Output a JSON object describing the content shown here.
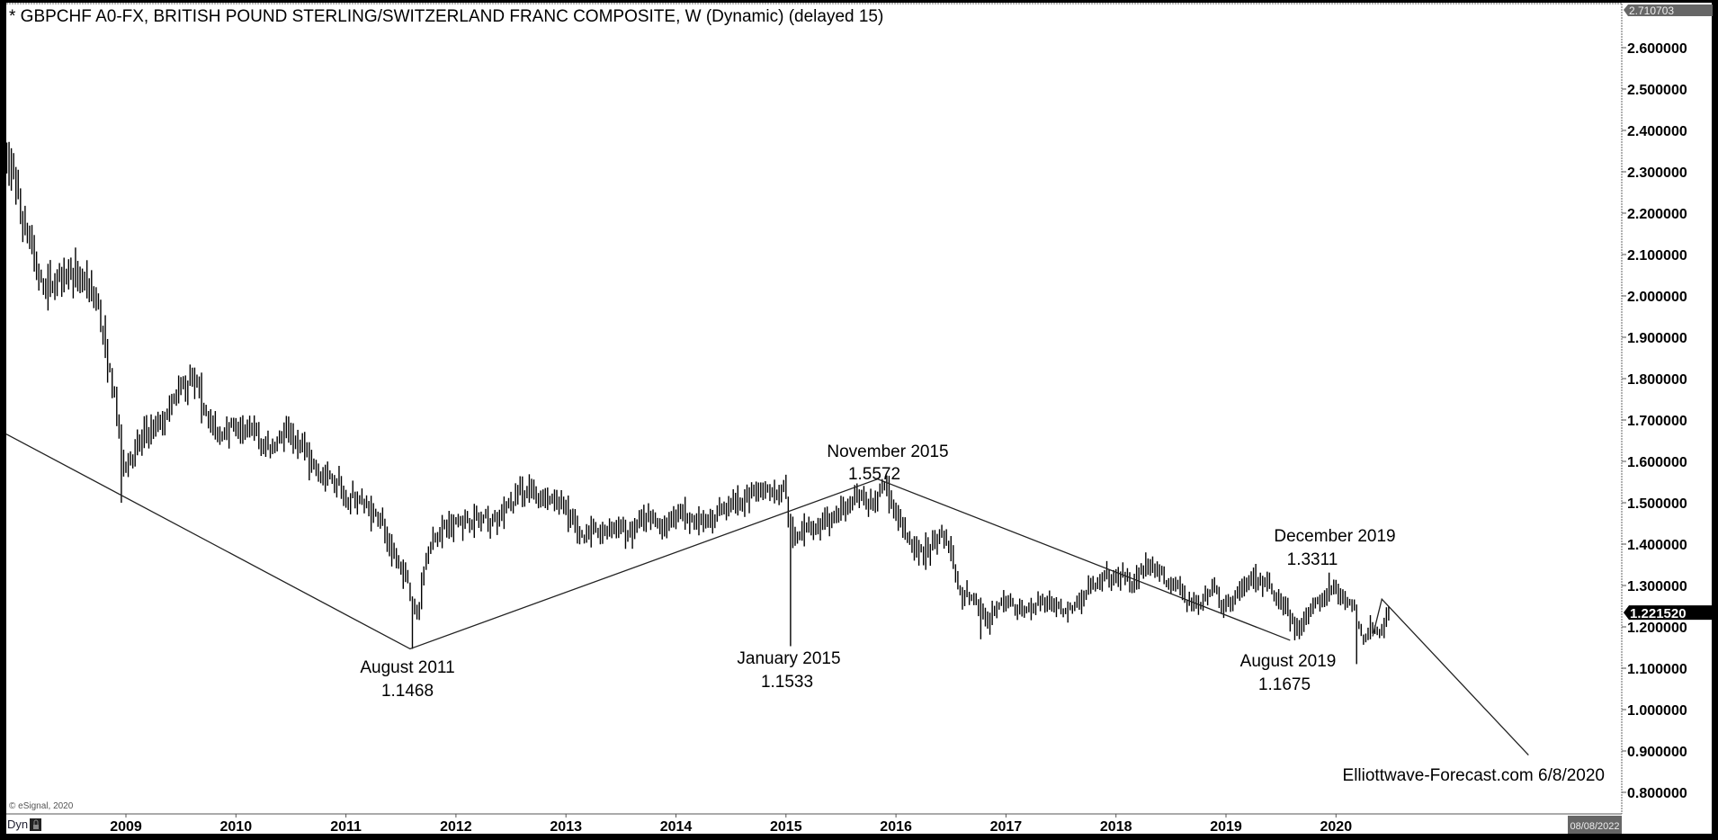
{
  "header": {
    "title": "* GBPCHF A0-FX, BRITISH POUND STERLING/SWITZERLAND FRANC COMPOSITE, W (Dynamic) (delayed 15)"
  },
  "footer": {
    "copyright": "© eSignal, 2020",
    "dyn_label": "Dyn",
    "lock_icon": "lock-icon",
    "end_date_badge": "08/08/2022"
  },
  "watermark": "Elliottwave-Forecast.com 6/8/2020",
  "price_axis": {
    "top_badge": "2.710703",
    "last_price": "1.221520",
    "last_price_value": 1.22152
  },
  "colors": {
    "bars": "#000000",
    "background": "#ffffff",
    "frame": "#000000",
    "badge_gray": "#666666"
  },
  "chart_data": {
    "type": "ohlc",
    "title": "* GBPCHF A0-FX, BRITISH POUND STERLING/SWITZERLAND FRANC COMPOSITE, W (Dynamic) (delayed 15)",
    "interval": "weekly",
    "ylim": [
      0.78,
      2.72
    ],
    "yticks": [
      "2.600000",
      "2.500000",
      "2.400000",
      "2.300000",
      "2.200000",
      "2.100000",
      "2.000000",
      "1.900000",
      "1.800000",
      "1.700000",
      "1.600000",
      "1.500000",
      "1.400000",
      "1.300000",
      "1.200000",
      "1.100000",
      "1.000000",
      "0.900000",
      "0.800000"
    ],
    "xticks": [
      "2009",
      "2010",
      "2011",
      "2012",
      "2013",
      "2014",
      "2015",
      "2016",
      "2017",
      "2018",
      "2019",
      "2020"
    ],
    "grid": false,
    "x": [
      "2007-11",
      "2007-12",
      "2008-01",
      "2008-02",
      "2008-03",
      "2008-04",
      "2008-05",
      "2008-06",
      "2008-07",
      "2008-08",
      "2008-09",
      "2008-10",
      "2008-11",
      "2008-12",
      "2009-01",
      "2009-02",
      "2009-03",
      "2009-04",
      "2009-05",
      "2009-06",
      "2009-07",
      "2009-08",
      "2009-09",
      "2009-10",
      "2009-11",
      "2009-12",
      "2010-01",
      "2010-02",
      "2010-03",
      "2010-04",
      "2010-05",
      "2010-06",
      "2010-07",
      "2010-08",
      "2010-09",
      "2010-10",
      "2010-11",
      "2010-12",
      "2011-01",
      "2011-02",
      "2011-03",
      "2011-04",
      "2011-05",
      "2011-06",
      "2011-07",
      "2011-08",
      "2011-09",
      "2011-10",
      "2011-11",
      "2011-12",
      "2012-01",
      "2012-02",
      "2012-03",
      "2012-04",
      "2012-05",
      "2012-06",
      "2012-07",
      "2012-08",
      "2012-09",
      "2012-10",
      "2012-11",
      "2012-12",
      "2013-01",
      "2013-02",
      "2013-03",
      "2013-04",
      "2013-05",
      "2013-06",
      "2013-07",
      "2013-08",
      "2013-09",
      "2013-10",
      "2013-11",
      "2013-12",
      "2014-01",
      "2014-02",
      "2014-03",
      "2014-04",
      "2014-05",
      "2014-06",
      "2014-07",
      "2014-08",
      "2014-09",
      "2014-10",
      "2014-11",
      "2014-12",
      "2015-01",
      "2015-02",
      "2015-03",
      "2015-04",
      "2015-05",
      "2015-06",
      "2015-07",
      "2015-08",
      "2015-09",
      "2015-10",
      "2015-11",
      "2015-12",
      "2016-01",
      "2016-02",
      "2016-03",
      "2016-04",
      "2016-05",
      "2016-06",
      "2016-07",
      "2016-08",
      "2016-09",
      "2016-10",
      "2016-11",
      "2016-12",
      "2017-01",
      "2017-02",
      "2017-03",
      "2017-04",
      "2017-05",
      "2017-06",
      "2017-07",
      "2017-08",
      "2017-09",
      "2017-10",
      "2017-11",
      "2017-12",
      "2018-01",
      "2018-02",
      "2018-03",
      "2018-04",
      "2018-05",
      "2018-06",
      "2018-07",
      "2018-08",
      "2018-09",
      "2018-10",
      "2018-11",
      "2018-12",
      "2019-01",
      "2019-02",
      "2019-03",
      "2019-04",
      "2019-05",
      "2019-06",
      "2019-07",
      "2019-08",
      "2019-09",
      "2019-10",
      "2019-11",
      "2019-12",
      "2020-01",
      "2020-02",
      "2020-03",
      "2020-04",
      "2020-05",
      "2020-06"
    ],
    "close": [
      2.33,
      2.3,
      2.17,
      2.12,
      2.02,
      2.03,
      2.05,
      2.07,
      2.04,
      2.03,
      2.0,
      1.87,
      1.75,
      1.58,
      1.62,
      1.65,
      1.67,
      1.68,
      1.72,
      1.77,
      1.79,
      1.77,
      1.72,
      1.67,
      1.67,
      1.68,
      1.66,
      1.68,
      1.64,
      1.63,
      1.66,
      1.67,
      1.64,
      1.62,
      1.58,
      1.56,
      1.55,
      1.52,
      1.51,
      1.5,
      1.48,
      1.46,
      1.39,
      1.35,
      1.3,
      1.22,
      1.38,
      1.42,
      1.44,
      1.45,
      1.45,
      1.45,
      1.46,
      1.46,
      1.48,
      1.49,
      1.52,
      1.53,
      1.52,
      1.51,
      1.5,
      1.49,
      1.46,
      1.42,
      1.43,
      1.42,
      1.44,
      1.45,
      1.42,
      1.44,
      1.46,
      1.45,
      1.45,
      1.46,
      1.48,
      1.46,
      1.45,
      1.46,
      1.48,
      1.49,
      1.5,
      1.51,
      1.53,
      1.53,
      1.52,
      1.54,
      1.4,
      1.44,
      1.45,
      1.44,
      1.45,
      1.47,
      1.5,
      1.51,
      1.5,
      1.5,
      1.54,
      1.48,
      1.44,
      1.4,
      1.38,
      1.39,
      1.42,
      1.4,
      1.29,
      1.27,
      1.26,
      1.21,
      1.24,
      1.26,
      1.25,
      1.24,
      1.24,
      1.26,
      1.25,
      1.24,
      1.25,
      1.25,
      1.28,
      1.31,
      1.32,
      1.32,
      1.32,
      1.31,
      1.33,
      1.36,
      1.33,
      1.31,
      1.3,
      1.26,
      1.25,
      1.28,
      1.29,
      1.25,
      1.26,
      1.29,
      1.31,
      1.31,
      1.29,
      1.26,
      1.23,
      1.19,
      1.23,
      1.26,
      1.28,
      1.3,
      1.27,
      1.26,
      1.17,
      1.2,
      1.19,
      1.22
    ],
    "extremes": [
      {
        "x": "2008-12",
        "low": 1.5
      },
      {
        "x": "2011-08",
        "low": 1.1468
      },
      {
        "x": "2015-01",
        "low": 1.1533
      },
      {
        "x": "2015-11",
        "high": 1.5572
      },
      {
        "x": "2016-10",
        "low": 1.17
      },
      {
        "x": "2018-04",
        "high": 1.38
      },
      {
        "x": "2019-08",
        "low": 1.1675
      },
      {
        "x": "2019-12",
        "high": 1.3311
      },
      {
        "x": "2020-03",
        "low": 1.11
      }
    ],
    "annotations": [
      {
        "label": "August 2011",
        "value": "1.1468"
      },
      {
        "label": "January 2015",
        "value": "1.1533"
      },
      {
        "label": "November 2015",
        "value": "1.5572"
      },
      {
        "label": "August 2019",
        "value": "1.1675"
      },
      {
        "label": "December 2019",
        "value": "1.3311"
      }
    ],
    "trendline": [
      [
        "2007-11",
        1.666
      ],
      [
        "2011-08",
        1.1468
      ],
      [
        "2015-11",
        1.5572
      ],
      [
        "2019-08",
        1.1675
      ]
    ],
    "projection": [
      [
        "2020-05",
        1.177
      ],
      [
        "2020-06",
        1.267
      ],
      [
        "2021-10",
        0.89
      ]
    ]
  }
}
